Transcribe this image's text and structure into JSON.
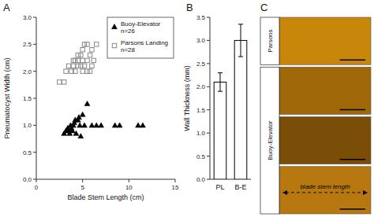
{
  "chart_data": [
    {
      "type": "scatter",
      "title": "A",
      "x_label": "Blade Stem Length (cm)",
      "y_label": "Pneumatocyst Width (cm)",
      "xlim": [
        0,
        15
      ],
      "ylim": [
        0,
        3
      ],
      "xticks": [
        0,
        5,
        10,
        15
      ],
      "yticks": [
        {
          "value": 0,
          "label": "0.0"
        },
        0.5,
        {
          "value": 1.0,
          "label": "1.0"
        },
        1.5,
        {
          "value": 2.0,
          "label": "2.0"
        },
        2.5,
        {
          "value": 3.0,
          "label": "3.0"
        }
      ],
      "grid": false,
      "legend": "upper-right",
      "series": [
        {
          "name": "Buoy-Elevator\nn=26",
          "color": "#000000",
          "marker": "triangle",
          "x": [
            3.0,
            3.2,
            3.4,
            3.5,
            3.6,
            3.7,
            3.8,
            3.9,
            4.0,
            4.1,
            4.2,
            4.3,
            4.5,
            4.6,
            4.7,
            4.8,
            5.0,
            5.2,
            5.5,
            6.0,
            6.5,
            7.0,
            8.5,
            9.0,
            11.0,
            11.5
          ],
          "values": [
            0.85,
            0.9,
            0.95,
            0.9,
            0.85,
            1.0,
            0.95,
            0.9,
            1.0,
            1.05,
            1.1,
            0.85,
            1.1,
            1.15,
            1.0,
            0.8,
            1.2,
            1.0,
            1.4,
            1.0,
            1.0,
            1.0,
            1.0,
            1.0,
            1.0,
            1.0
          ]
        },
        {
          "name": "Parsons Landing\nn=28",
          "color": "#888888",
          "marker": "open-square",
          "x": [
            2.5,
            3.0,
            3.2,
            3.5,
            3.8,
            4.0,
            4.0,
            4.2,
            4.2,
            4.5,
            4.5,
            4.5,
            4.8,
            4.8,
            5.0,
            5.0,
            5.0,
            5.2,
            5.2,
            5.5,
            5.5,
            5.5,
            5.8,
            5.8,
            6.0,
            6.0,
            6.2,
            6.5
          ],
          "values": [
            1.8,
            1.8,
            2.0,
            2.1,
            2.0,
            2.1,
            2.2,
            2.0,
            2.2,
            2.1,
            2.2,
            2.3,
            2.1,
            2.3,
            2.0,
            2.2,
            2.4,
            2.1,
            2.5,
            2.0,
            2.2,
            2.5,
            2.0,
            2.3,
            2.1,
            2.4,
            2.2,
            2.5
          ]
        }
      ]
    },
    {
      "type": "bar",
      "title": "B",
      "y_label": "Wall Thickness (mm)",
      "categories": [
        "PL",
        "B-E"
      ],
      "values": [
        2.1,
        3.0
      ],
      "errors": [
        0.2,
        0.35
      ],
      "colors": [
        "#ffffff",
        "#ffffff"
      ],
      "ylim": [
        0,
        3.5
      ],
      "yticks": [
        {
          "value": 0,
          "label": "0.0"
        },
        0.5,
        {
          "value": 1.0,
          "label": "1.0"
        },
        1.5,
        {
          "value": 2.0,
          "label": "2.0"
        },
        2.5,
        {
          "value": 3.0,
          "label": "3.0"
        },
        3.5
      ],
      "grid": false
    },
    {
      "type": "diagram",
      "title": "C",
      "annotations": [
        "Parsons",
        "Buoy-Elevator",
        "blade stem length"
      ],
      "colors": [
        "#C8860A",
        "#A06808",
        "#7A4E06",
        "#B87810"
      ]
    }
  ]
}
